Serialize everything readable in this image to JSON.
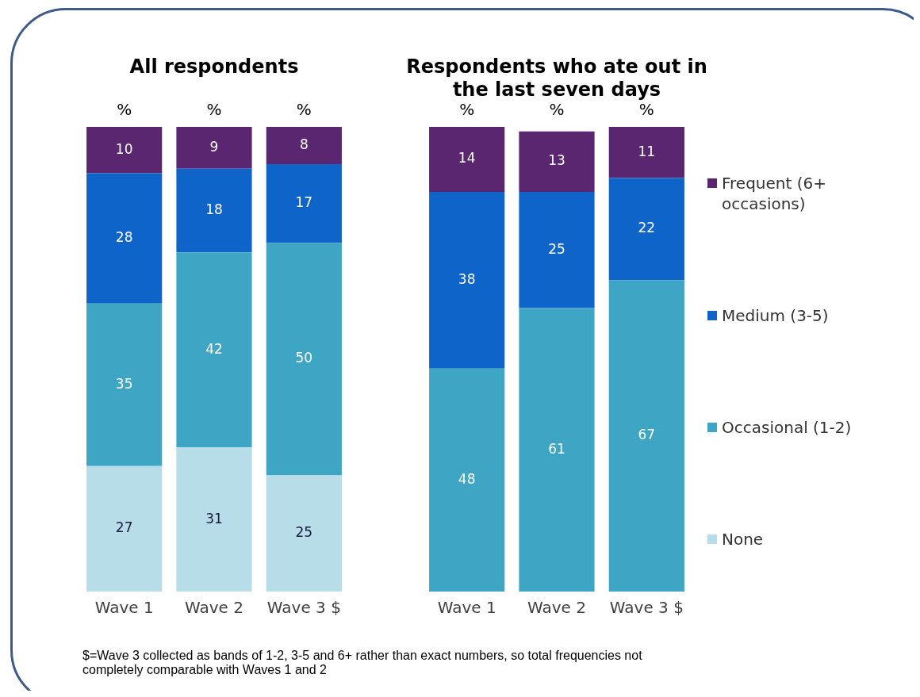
{
  "chart_data": [
    {
      "type": "bar",
      "title": "All respondents",
      "ylabel": "%",
      "categories": [
        "Wave 1",
        "Wave 2",
        "Wave 3 $"
      ],
      "stacked": true,
      "data_labels": true,
      "grid": false,
      "tick_labels": "x",
      "series": [
        {
          "color": "#b7dde8",
          "values": [
            27,
            31,
            25
          ]
        },
        {
          "color": "#3ea6c4",
          "values": [
            35,
            42,
            50
          ]
        },
        {
          "color": "#0e64c8",
          "values": [
            28,
            18,
            17
          ]
        },
        {
          "color": "#59266f",
          "values": [
            10,
            9,
            8
          ]
        }
      ],
      "annotations": [
        "$=Wave 3 collected as bands of 1-2, 3-5 and 6+ rather than exact numbers, so total frequencies not completely comparable with  Waves 1 and 2"
      ]
    },
    {
      "type": "bar",
      "title": "Respondents who ate out in the last seven days",
      "ylabel": "%",
      "categories": [
        "Wave 1",
        "Wave 2",
        "Wave 3 $"
      ],
      "stacked": true,
      "data_labels": true,
      "legend": "right",
      "grid": false,
      "tick_labels": "x",
      "series": [
        {
          "name": "None",
          "color": "#b7dde8",
          "values": [
            null,
            null,
            null
          ]
        },
        {
          "name": "Occasional (1-2)",
          "color": "#3ea6c4",
          "values": [
            48,
            61,
            67
          ]
        },
        {
          "name": "Medium (3-5)",
          "color": "#0e64c8",
          "values": [
            38,
            25,
            22
          ]
        },
        {
          "name": "Frequent (6+ occasions)",
          "color": "#59266f",
          "values": [
            14,
            13,
            11
          ]
        }
      ]
    }
  ]
}
